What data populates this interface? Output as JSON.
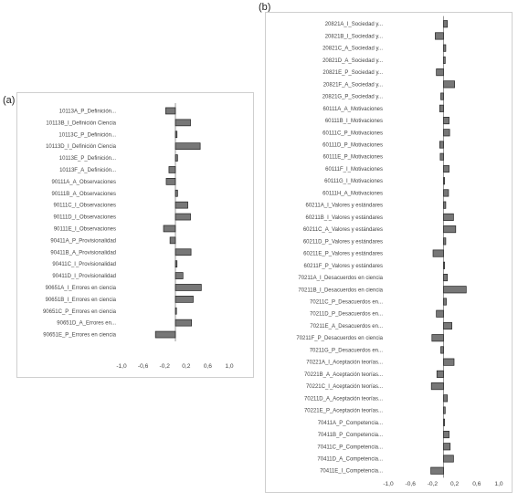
{
  "panels": [
    {
      "label": "(a)"
    },
    {
      "label": "(b)"
    }
  ],
  "colors": {
    "bar_fill": "#777777",
    "bar_stroke": "#222222",
    "zero_line": "#555555"
  },
  "chart_data": [
    {
      "type": "bar",
      "orientation": "horizontal",
      "xlim": [
        -1.0,
        1.0
      ],
      "ticks": [
        "-1,0",
        "-0,6",
        "-0,2",
        "0,2",
        "0,6",
        "1,0"
      ],
      "categories": [
        "10113A_P_Definición...",
        "10113B_I_Definición Ciencia",
        "10113C_P_Definición...",
        "10113D_I_Definición Ciencia",
        "10113E_P_Definición...",
        "10113F_A_Definición...",
        "90111A_A_Observaciones",
        "90111B_A_Observaciones",
        "90111C_I_Observaciones",
        "90111D_I_Observaciones",
        "90111E_I_Observaciones",
        "90411A_P_Provisionalidad",
        "90411B_A_Provisionalidad",
        "90411C_I_Provisionalidad",
        "90411D_I_Provisionalidad",
        "90651A_I_Errores en ciencia",
        "90651B_I_Errores en ciencia",
        "90651C_P_Errores en ciencia",
        "90651D_A_Errores en...",
        "90651E_P_Errores en ciencia"
      ],
      "values": [
        -0.18,
        0.28,
        0.03,
        0.46,
        0.04,
        -0.12,
        -0.17,
        0.04,
        0.23,
        0.28,
        -0.22,
        -0.1,
        0.29,
        0.03,
        0.14,
        0.48,
        0.33,
        0.02,
        0.3,
        -0.37
      ]
    },
    {
      "type": "bar",
      "orientation": "horizontal",
      "xlim": [
        -1.0,
        1.0
      ],
      "ticks": [
        "-1,0",
        "-0,6",
        "-0,2",
        "0,2",
        "0,6",
        "1,0"
      ],
      "categories": [
        "20821A_I_Sociedad y...",
        "20821B_I_Sociedad y...",
        "20821C_A_Sociedad y...",
        "20821D_A_Sociedad y...",
        "20821E_P_Sociedad y...",
        "20821F_A_Sociedad y...",
        "20821G_P_Sociedad y...",
        "60111A_A_Motivaciones",
        "60111B_I_Motivaciones",
        "60111C_P_Motivaciones",
        "60111D_P_Motivaciones",
        "60111E_P_Motivaciones",
        "60111F_I_Motivaciones",
        "60111G_I_Motivaciones",
        "60111H_A_Motivaciones",
        "60211A_I_Valores y estándares",
        "60211B_I_Valores y estándares",
        "60211C_A_Valores y estándares",
        "60211D_P_Valores y estándares",
        "60211E_P_Valores y estándares",
        "60211F_P_Valores y estándares",
        "70211A_I_Desacuerdos en ciencia",
        "70211B_I_Desacuerdos en ciencia",
        "70211C_P_Desacuerdos en...",
        "70211D_P_Desacuerdos en...",
        "70211E_A_Desacuerdos en...",
        "70211F_P_Desacuerdos en ciencia",
        "70211G_P_Desacuerdos en...",
        "70221A_I_Aceptación teorías...",
        "70221B_A_Aceptación teorías...",
        "70221C_I_Aceptación teorías...",
        "70211D_A_Aceptación teorías...",
        "70221E_P_Aceptación teorías...",
        "70411A_P_Competencia...",
        "70411B_P_Competencia...",
        "70411C_P_Competencia...",
        "70411D_A_Competencia...",
        "70411E_I_Competencia..."
      ],
      "values": [
        0.07,
        -0.15,
        0.04,
        0.03,
        -0.13,
        0.2,
        -0.05,
        -0.07,
        0.1,
        0.11,
        -0.07,
        -0.06,
        0.1,
        0.02,
        0.09,
        0.04,
        0.18,
        0.22,
        0.04,
        -0.19,
        0.02,
        0.07,
        0.41,
        0.05,
        -0.13,
        0.15,
        -0.21,
        -0.05,
        0.19,
        -0.12,
        -0.22,
        0.07,
        0.03,
        0.02,
        0.1,
        0.12,
        0.18,
        -0.23
      ]
    }
  ]
}
